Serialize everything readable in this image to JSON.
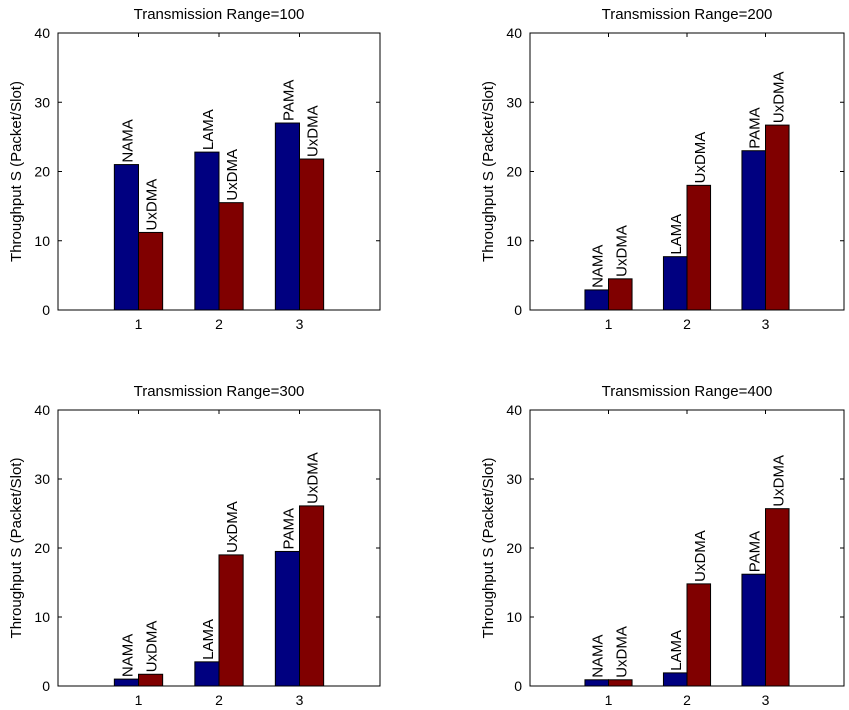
{
  "colors": {
    "series_1": "#000080",
    "series_2": "#800000",
    "axis": "#000000"
  },
  "chart_data": [
    {
      "type": "bar",
      "title": "Transmission Range=100",
      "xlabel": "",
      "ylabel": "Throughput S (Packet/Slot)",
      "categories": [
        "1",
        "2",
        "3"
      ],
      "xlim": [
        0,
        4
      ],
      "ylim": [
        0,
        40
      ],
      "yticks": [
        "0",
        "10",
        "20",
        "30",
        "40"
      ],
      "grid": false,
      "series": [
        {
          "values": [
            21.0,
            22.8,
            27.0
          ],
          "labels": [
            "NAMA",
            "LAMA",
            "PAMA"
          ]
        },
        {
          "values": [
            11.2,
            15.5,
            21.8
          ],
          "labels": [
            "UxDMA",
            "UxDMA",
            "UxDMA"
          ]
        }
      ]
    },
    {
      "type": "bar",
      "title": "Transmission Range=200",
      "xlabel": "",
      "ylabel": "Throughput S (Packet/Slot)",
      "categories": [
        "1",
        "2",
        "3"
      ],
      "xlim": [
        0,
        4
      ],
      "ylim": [
        0,
        40
      ],
      "yticks": [
        "0",
        "10",
        "20",
        "30",
        "40"
      ],
      "grid": false,
      "series": [
        {
          "values": [
            2.9,
            7.7,
            23.0
          ],
          "labels": [
            "NAMA",
            "LAMA",
            "PAMA"
          ]
        },
        {
          "values": [
            4.5,
            18.0,
            26.7
          ],
          "labels": [
            "UxDMA",
            "UxDMA",
            "UxDMA"
          ]
        }
      ]
    },
    {
      "type": "bar",
      "title": "Transmission Range=300",
      "xlabel": "",
      "ylabel": "Throughput S (Packet/Slot)",
      "categories": [
        "1",
        "2",
        "3"
      ],
      "xlim": [
        0,
        4
      ],
      "ylim": [
        0,
        40
      ],
      "yticks": [
        "0",
        "10",
        "20",
        "30",
        "40"
      ],
      "grid": false,
      "series": [
        {
          "values": [
            1.0,
            3.5,
            19.5
          ],
          "labels": [
            "NAMA",
            "LAMA",
            "PAMA"
          ]
        },
        {
          "values": [
            1.7,
            19.0,
            26.1
          ],
          "labels": [
            "UxDMA",
            "UxDMA",
            "UxDMA"
          ]
        }
      ]
    },
    {
      "type": "bar",
      "title": "Transmission Range=400",
      "xlabel": "",
      "ylabel": "Throughput S (Packet/Slot)",
      "categories": [
        "1",
        "2",
        "3"
      ],
      "xlim": [
        0,
        4
      ],
      "ylim": [
        0,
        40
      ],
      "yticks": [
        "0",
        "10",
        "20",
        "30",
        "40"
      ],
      "grid": false,
      "series": [
        {
          "values": [
            0.9,
            1.9,
            16.2
          ],
          "labels": [
            "NAMA",
            "LAMA",
            "PAMA"
          ]
        },
        {
          "values": [
            0.9,
            14.8,
            25.7
          ],
          "labels": [
            "UxDMA",
            "UxDMA",
            "UxDMA"
          ]
        }
      ]
    }
  ]
}
